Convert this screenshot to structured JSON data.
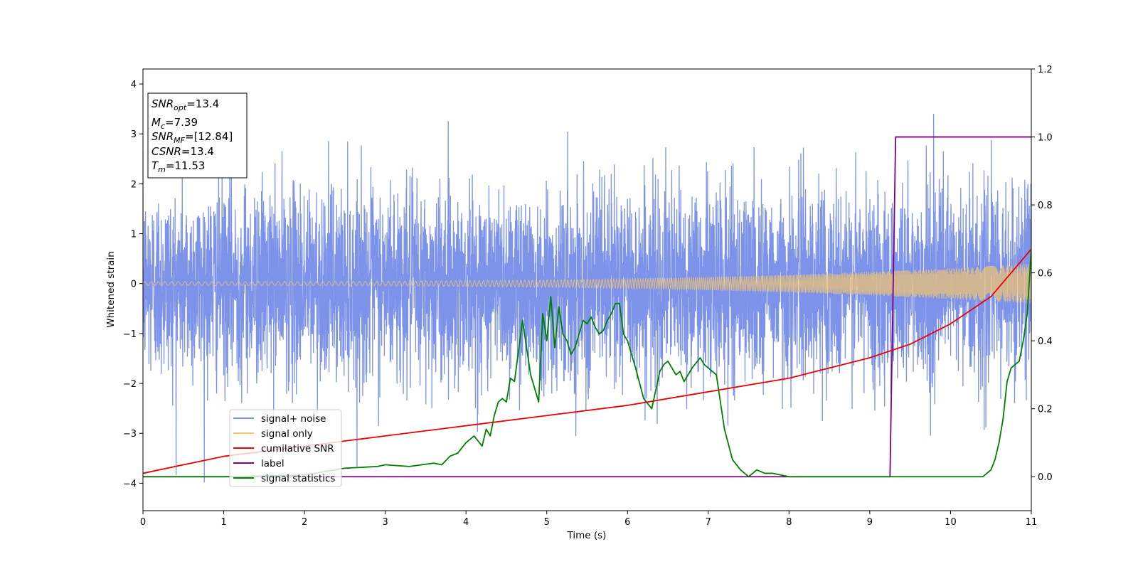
{
  "chart_data": {
    "type": "line",
    "xlabel": "Time (s)",
    "ylabel": "Whitened strain",
    "xlim": [
      0,
      11
    ],
    "ylim": [
      -4.55,
      4.3
    ],
    "y2lim": [
      -0.1,
      1.2
    ],
    "x_ticks": [
      "0",
      "1",
      "2",
      "3",
      "4",
      "5",
      "6",
      "7",
      "8",
      "9",
      "10",
      "11"
    ],
    "y_ticks": [
      "−4",
      "−3",
      "−2",
      "−1",
      "0",
      "1",
      "2",
      "3",
      "4"
    ],
    "y2_ticks": [
      "0.0",
      "0.2",
      "0.4",
      "0.6",
      "0.8",
      "1.0",
      "1.2"
    ],
    "grid": false,
    "legend_position": "lower-left",
    "info_box": {
      "snr_opt": {
        "main": "SNR",
        "sub": "opt",
        "rest": "=13.4"
      },
      "mc": {
        "main": "M",
        "sub": "c",
        "rest": "=7.39"
      },
      "snr_mf": {
        "main": "SNR",
        "sub": "MF",
        "rest": "=[12.84]"
      },
      "csnr": {
        "main": "CSNR",
        "rest": "=13.4"
      },
      "tm": {
        "main": "T",
        "sub": "m",
        "rest": "=11.53"
      }
    },
    "series": [
      {
        "name": "signal+ noise",
        "axis": "left",
        "color": "#7890e8",
        "kind": "noise",
        "std": 0.95,
        "y_range": [
          -4.15,
          3.4
        ]
      },
      {
        "name": "signal only",
        "axis": "left",
        "color": "#f5c46e",
        "kind": "chirp",
        "amplitude_start": 0.04,
        "amplitude_end": 0.4
      },
      {
        "name": "cumilative SNR",
        "axis": "right",
        "color": "#ee0000",
        "x": [
          0,
          1,
          2,
          3,
          4,
          5,
          6,
          7,
          8,
          9,
          9.5,
          10,
          10.5,
          11
        ],
        "y": [
          0.01,
          0.06,
          0.09,
          0.12,
          0.15,
          0.18,
          0.21,
          0.25,
          0.29,
          0.35,
          0.39,
          0.45,
          0.53,
          0.67
        ]
      },
      {
        "name": "label",
        "axis": "right",
        "color": "#800080",
        "x": [
          0,
          9.25,
          9.32,
          11
        ],
        "y": [
          0,
          0,
          1,
          1
        ]
      },
      {
        "name": "signal statistics",
        "axis": "right",
        "color": "#008000",
        "x": [
          0,
          1,
          2,
          2.5,
          2.9,
          3.0,
          3.3,
          3.6,
          3.7,
          3.8,
          3.9,
          4.0,
          4.1,
          4.2,
          4.25,
          4.3,
          4.35,
          4.4,
          4.45,
          4.5,
          4.55,
          4.6,
          4.7,
          4.8,
          4.9,
          4.95,
          5.0,
          5.05,
          5.1,
          5.15,
          5.2,
          5.25,
          5.3,
          5.35,
          5.4,
          5.45,
          5.5,
          5.55,
          5.6,
          5.65,
          5.7,
          5.75,
          5.8,
          5.85,
          5.9,
          5.95,
          6.0,
          6.1,
          6.2,
          6.3,
          6.4,
          6.45,
          6.5,
          6.55,
          6.6,
          6.65,
          6.7,
          6.8,
          6.9,
          6.95,
          7.0,
          7.1,
          7.2,
          7.3,
          7.4,
          7.5,
          7.6,
          7.7,
          7.8,
          8.0,
          8.5,
          9.0,
          9.5,
          10.0,
          10.2,
          10.4,
          10.45,
          10.5,
          10.55,
          10.6,
          10.65,
          10.7,
          10.75,
          10.8,
          10.85,
          10.9,
          10.95,
          11.0
        ],
        "y": [
          0.0,
          0.0,
          0.005,
          0.025,
          0.03,
          0.035,
          0.03,
          0.04,
          0.035,
          0.06,
          0.07,
          0.1,
          0.12,
          0.09,
          0.14,
          0.12,
          0.18,
          0.22,
          0.23,
          0.22,
          0.29,
          0.28,
          0.46,
          0.3,
          0.22,
          0.48,
          0.4,
          0.53,
          0.38,
          0.5,
          0.42,
          0.4,
          0.36,
          0.38,
          0.42,
          0.46,
          0.45,
          0.47,
          0.44,
          0.42,
          0.43,
          0.46,
          0.48,
          0.51,
          0.51,
          0.42,
          0.4,
          0.32,
          0.23,
          0.2,
          0.31,
          0.33,
          0.34,
          0.32,
          0.3,
          0.31,
          0.28,
          0.32,
          0.35,
          0.33,
          0.32,
          0.3,
          0.14,
          0.05,
          0.02,
          0.0,
          0.02,
          0.01,
          0.01,
          0.0,
          0.0,
          0.0,
          0.0,
          0.0,
          0.0,
          0.0,
          0.01,
          0.02,
          0.05,
          0.1,
          0.17,
          0.28,
          0.32,
          0.33,
          0.34,
          0.4,
          0.48,
          0.67
        ]
      }
    ]
  }
}
